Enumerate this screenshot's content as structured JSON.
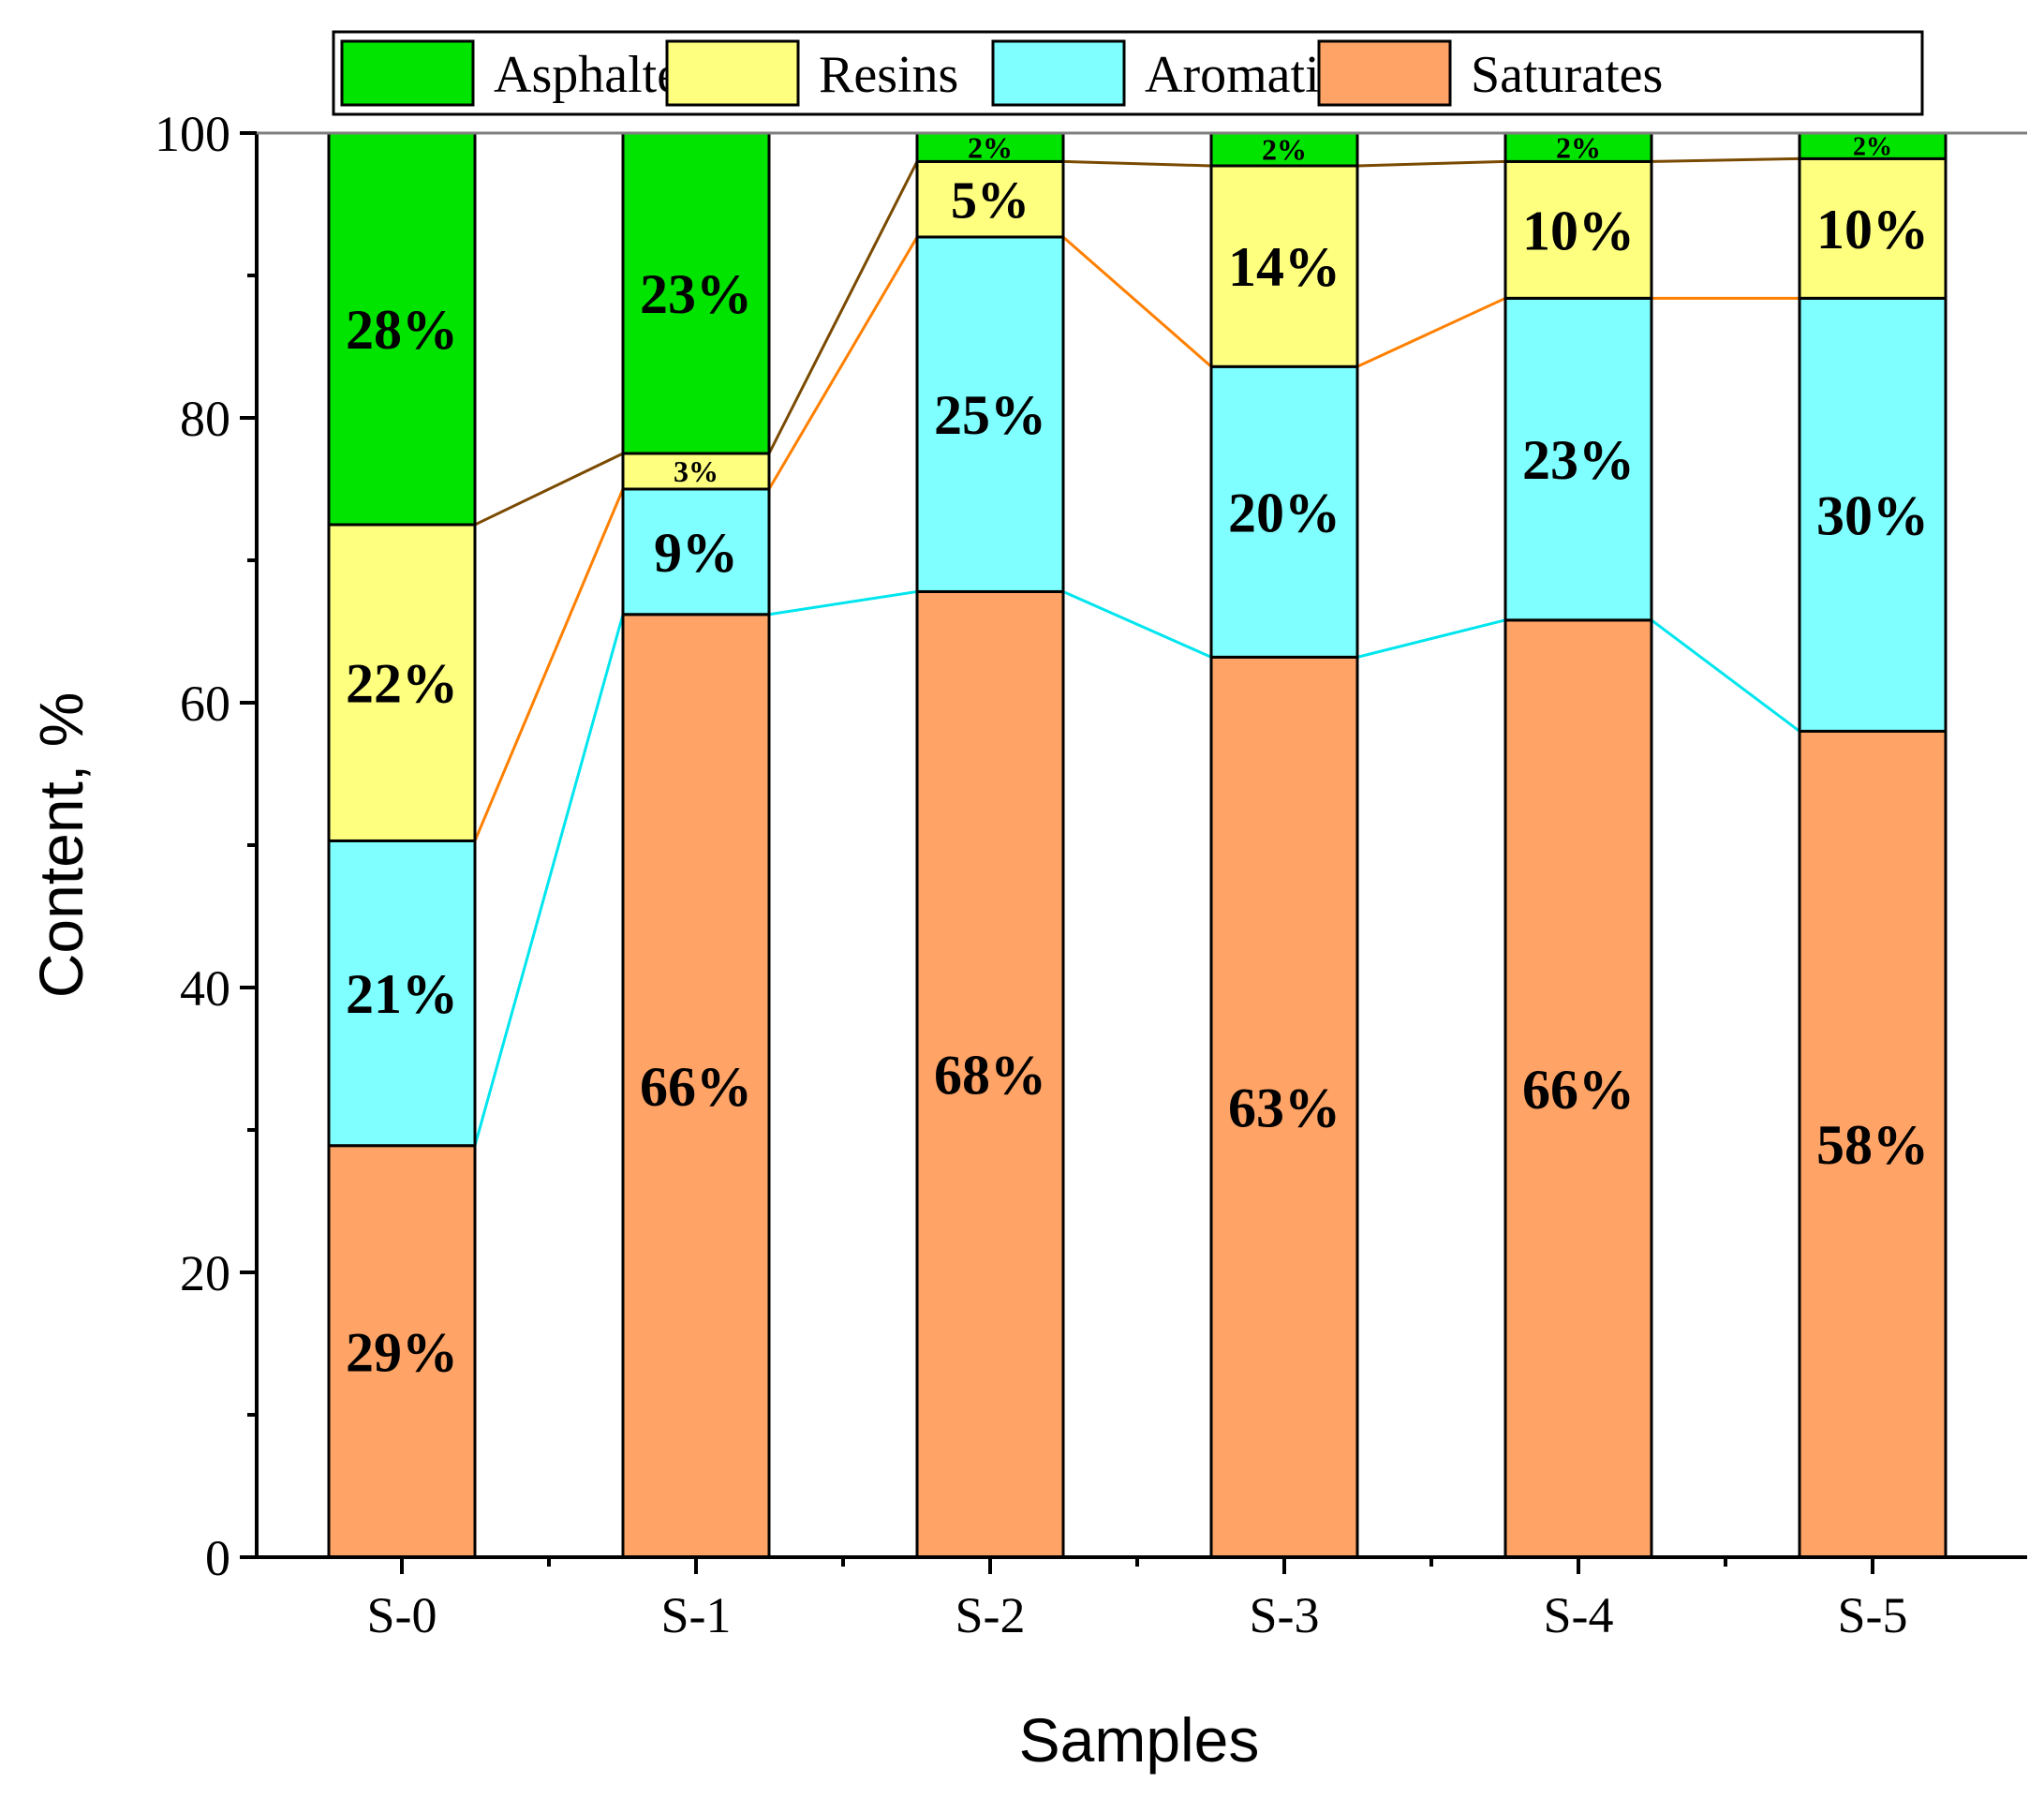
{
  "chart_data": {
    "type": "bar",
    "stacked": true,
    "title": "",
    "xlabel": "Samples",
    "ylabel": "Content, %",
    "ylim": [
      0,
      100
    ],
    "yticks": [
      "0",
      "20",
      "40",
      "60",
      "80",
      "100"
    ],
    "categories": [
      "S-0",
      "S-1",
      "S-2",
      "S-3",
      "S-4",
      "S-5"
    ],
    "series": [
      {
        "name": "Saturates",
        "color": "#FFA366",
        "values": [
          28.9,
          66.2,
          67.8,
          63.2,
          65.8,
          58.0
        ],
        "labels": [
          "29%",
          "66%",
          "68%",
          "63%",
          "66%",
          "58%"
        ]
      },
      {
        "name": "Aromatics",
        "color": "#7FFFFF",
        "values": [
          21.4,
          8.8,
          24.9,
          20.4,
          22.6,
          30.4
        ],
        "labels": [
          "21%",
          "9%",
          "25%",
          "20%",
          "23%",
          "30%"
        ]
      },
      {
        "name": "Resins",
        "color": "#FFFF7F",
        "values": [
          22.2,
          2.5,
          5.3,
          14.1,
          9.6,
          9.8
        ],
        "labels": [
          "22%",
          "3%",
          "5%",
          "14%",
          "10%",
          "10%"
        ]
      },
      {
        "name": "Asphaltenes",
        "color": "#00E400",
        "values": [
          27.5,
          22.5,
          2.0,
          2.3,
          2.0,
          1.8
        ],
        "labels": [
          "28%",
          "23%",
          "2%",
          "2%",
          "2%",
          "2%"
        ]
      }
    ],
    "legend": {
      "position": "top",
      "order": [
        "Asphaltenes",
        "Resins",
        "Aromatics",
        "Saturates"
      ]
    },
    "connector_lines": [
      {
        "boundary": "Saturates/Aromatics",
        "color": "#00E5EE"
      },
      {
        "boundary": "Aromatics/Resins",
        "color": "#FF8000"
      },
      {
        "boundary": "Resins/Asphaltenes",
        "color": "#7A4A00"
      }
    ]
  }
}
